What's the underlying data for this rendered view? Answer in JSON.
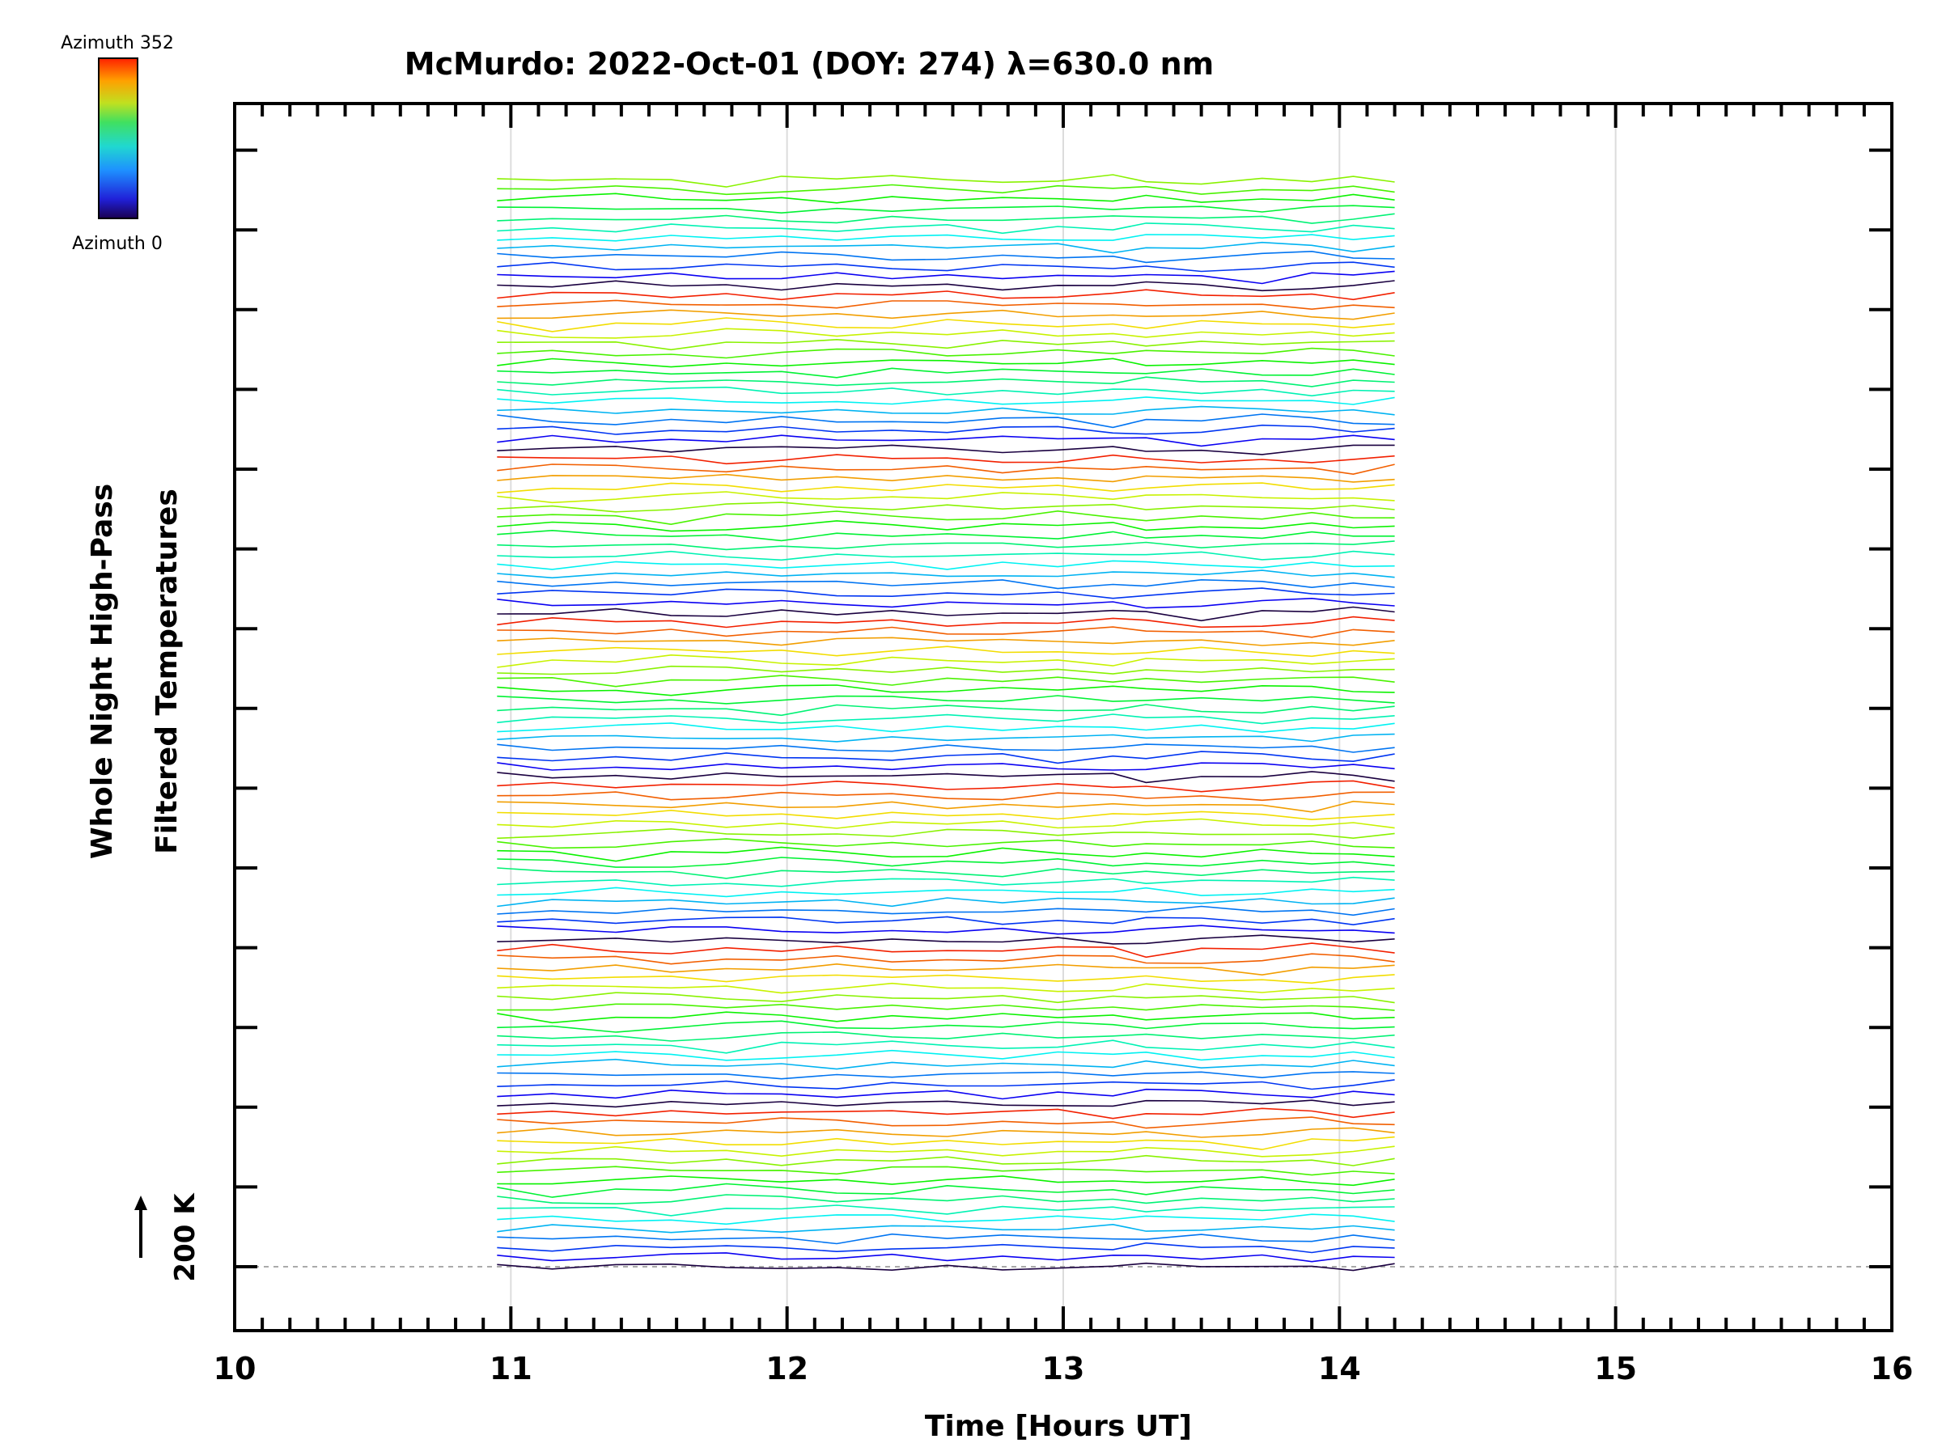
{
  "chart_data": {
    "type": "line",
    "title": "McMurdo: 2022-Oct-01 (DOY: 274) λ=630.0 nm",
    "xlabel": "Time [Hours UT]",
    "ylabel_line1": "Whole Night High-Pass",
    "ylabel_line2": "Filtered Temperatures",
    "xlim": [
      10,
      16
    ],
    "x_ticks": [
      "10",
      "11",
      "12",
      "13",
      "14",
      "15",
      "16"
    ],
    "y_scale_label": "200 K",
    "colorbar": {
      "top_label": "Azimuth 352",
      "bottom_label": "Azimuth 0"
    },
    "x": [
      10.95,
      11.15,
      11.38,
      11.58,
      11.78,
      11.98,
      12.18,
      12.38,
      12.58,
      12.78,
      12.98,
      13.18,
      13.3,
      13.5,
      13.72,
      13.9,
      14.05,
      14.2
    ],
    "n_traces": 114,
    "noise": [
      [
        -3,
        1,
        -4,
        -2,
        3,
        2,
        -1,
        4,
        0,
        6,
        1,
        -3,
        -5,
        2,
        1,
        -2,
        3,
        -4
      ],
      [
        2,
        -4,
        3,
        1,
        -2,
        -5,
        1,
        0,
        -3,
        7,
        -1,
        2,
        -4,
        -1,
        5,
        -3,
        4,
        -2
      ],
      [
        -1,
        3,
        -2,
        4,
        -1,
        2,
        -3,
        -2,
        5,
        4,
        2,
        -5,
        -2,
        3,
        -4,
        1,
        -3,
        5
      ],
      [
        4,
        -2,
        5,
        -3,
        2,
        0,
        3,
        -1,
        -2,
        9,
        -3,
        1,
        -6,
        -2,
        3,
        4,
        -5,
        2
      ],
      [
        -4,
        2,
        -1,
        3,
        4,
        -3,
        2,
        5,
        -1,
        5,
        3,
        -2,
        -4,
        0,
        2,
        -3,
        5,
        1
      ]
    ]
  }
}
